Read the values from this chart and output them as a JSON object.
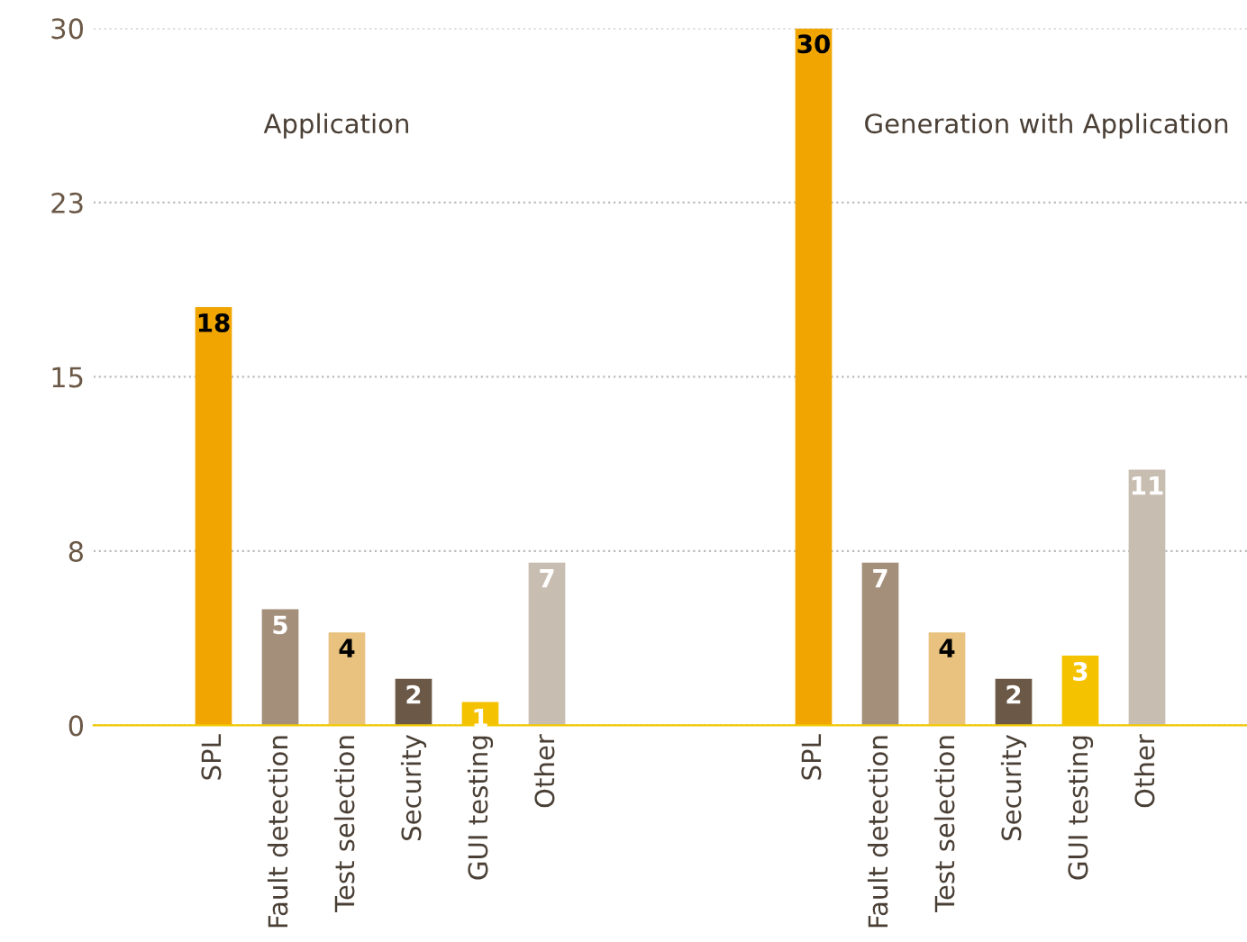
{
  "chart_data": {
    "type": "bar",
    "categories": [
      "SPL",
      "Fault detection",
      "Test selection",
      "Security",
      "GUI testing",
      "Other",
      null,
      null,
      null,
      "SPL",
      "Fault detection",
      "Test selection",
      "Security",
      "GUI testing",
      "Other"
    ],
    "values": [
      18,
      5,
      4,
      2,
      1,
      7,
      null,
      null,
      null,
      30,
      7,
      4,
      2,
      3,
      11
    ],
    "colors": [
      "#f0a500",
      "#a38f7a",
      "#e8c27e",
      "#6b5846",
      "#f5c200",
      "#c8bdb1",
      "#ffffff",
      "#ffffff",
      "#ffffff",
      "#f0a500",
      "#a38f7a",
      "#e8c27e",
      "#6b5846",
      "#f5c200",
      "#c8bdb1"
    ],
    "ylim": [
      0,
      30
    ],
    "yticks": [
      0,
      {
        "value": 7.5,
        "label": "8"
      },
      15,
      {
        "value": 22.5,
        "label": "23"
      },
      30
    ],
    "grid": "y",
    "data_labels": true,
    "annotations": [
      "Application",
      "Generation with Application"
    ]
  }
}
